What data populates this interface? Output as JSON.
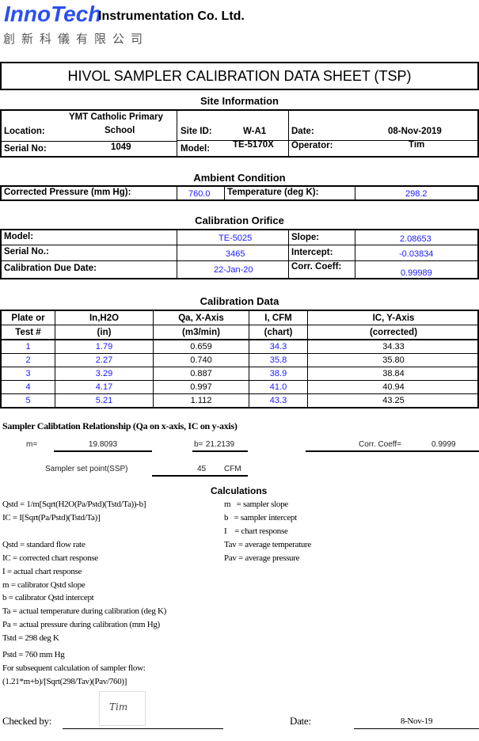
{
  "header": {
    "logo": "InnoTech",
    "company": "Instrumentation Co. Ltd.",
    "company_cn": "創新科儀有限公司"
  },
  "title": "HIVOL SAMPLER CALIBRATION  DATA SHEET (TSP)",
  "site": {
    "heading": "Site Information",
    "location_label": "Location:",
    "location_value_1": "YMT Catholic Primary",
    "location_value_2": "School",
    "site_id_label": "Site ID:",
    "site_id_value": "W-A1",
    "date_label": "Date:",
    "date_value": "08-Nov-2019",
    "serial_label": "Serial No:",
    "serial_value": "1049",
    "model_label": "Model:",
    "model_value": "TE-5170X",
    "operator_label": "Operator:",
    "operator_value": "Tim"
  },
  "ambient": {
    "heading": "Ambient Condition",
    "pressure_label": "Corrected Pressure (mm Hg):",
    "pressure_value": "760.0",
    "temp_label": "Temperature (deg K):",
    "temp_value": "298.2"
  },
  "orifice": {
    "heading": "Calibration Orifice",
    "model_label": "Model:",
    "model_value": "TE-5025",
    "slope_label": "Slope:",
    "slope_value": "2.08653",
    "serial_label": "Serial No.:",
    "serial_value": "3465",
    "intercept_label": "Intercept:",
    "intercept_value": "-0.03834",
    "due_label": "Calibration Due Date:",
    "due_value": "22-Jan-20",
    "corr_label": "Corr. Coeff:",
    "corr_value": "0.99989"
  },
  "calibration": {
    "heading": "Calibration Data",
    "headers": [
      [
        "Plate or",
        "Test #"
      ],
      [
        "In,H2O",
        "(in)"
      ],
      [
        "Qa, X-Axis",
        "(m3/min)"
      ],
      [
        "I, CFM",
        "(chart)"
      ],
      [
        "IC, Y-Axis",
        "(corrected)"
      ]
    ],
    "rows": [
      [
        "1",
        "1.79",
        "0.659",
        "34.3",
        "34.33"
      ],
      [
        "2",
        "2.27",
        "0.740",
        "35.8",
        "35.80"
      ],
      [
        "3",
        "3.29",
        "0.887",
        "38.9",
        "38.84"
      ],
      [
        "4",
        "4.17",
        "0.997",
        "41.0",
        "40.94"
      ],
      [
        "5",
        "5.21",
        "1.112",
        "43.3",
        "43.25"
      ]
    ]
  },
  "relationship": {
    "heading": "Sampler Calibtation Relationship (Qa on x-axis, IC on y-axis)",
    "m_label": "m=",
    "m_value": "19.8093",
    "b_label": "b=",
    "b_value": "21.2139",
    "corr_label": "Corr. Coeff=",
    "corr_value": "0.9999",
    "ssp_label": "Sampler set point(SSP)",
    "ssp_value": "45",
    "ssp_unit": "CFM"
  },
  "calculations": {
    "heading": "Calculations",
    "left": [
      "Qstd = 1/m[Sqrt(H2O(Pa/Pstd)(Tstd/Ta))-b]",
      "IC = I[Sqrt(Pa/Pstd)(Tstd/Ta)]",
      "Qstd = standard flow rate",
      "IC = corrected chart response",
      "I = actual chart response",
      "m  = calibrator Qstd slope",
      "b  = calibrator Qstd intercept",
      "Ta = actual temperature during calibration (deg K)",
      "Pa = actual pressure during calibration (mm Hg)",
      "Tstd = 298 deg K",
      "Pstd = 760 mm Hg",
      "For subsequent calculation of sampler flow:",
      "(1.21*m+b)/[Sqrt(298/Tav)(Pav/760)]"
    ],
    "right": [
      "m   = sampler slope",
      "b   = sampler intercept",
      "I    = chart response",
      "Tav = average temperature",
      "Pav = average pressure"
    ]
  },
  "footer": {
    "checked_label": "Checked by:",
    "signature": "Tim",
    "date_label": "Date:",
    "date_value": "8-Nov-19"
  }
}
